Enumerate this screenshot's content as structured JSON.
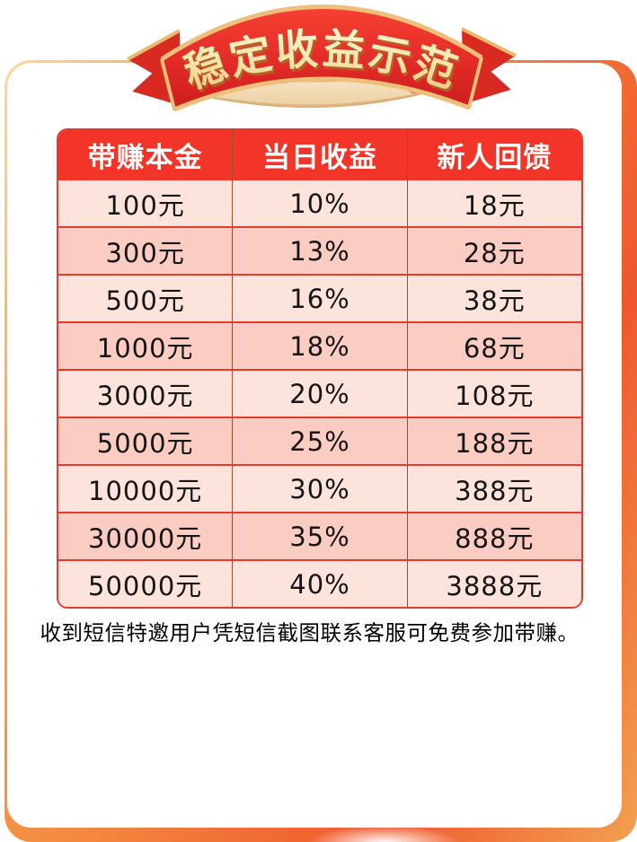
{
  "banner": {
    "title": "稳定收益示范"
  },
  "table": {
    "headers": [
      "带赚本金",
      "当日收益",
      "新人回馈"
    ],
    "rows": [
      [
        "100元",
        "10%",
        "18元"
      ],
      [
        "300元",
        "13%",
        "28元"
      ],
      [
        "500元",
        "16%",
        "38元"
      ],
      [
        "1000元",
        "18%",
        "68元"
      ],
      [
        "3000元",
        "20%",
        "108元"
      ],
      [
        "5000元",
        "25%",
        "188元"
      ],
      [
        "10000元",
        "30%",
        "388元"
      ],
      [
        "30000元",
        "35%",
        "888元"
      ],
      [
        "50000元",
        "40%",
        "3888元"
      ]
    ]
  },
  "note": "收到短信特邀用户凭短信截图联系客服可免费参加带赚。",
  "colors": {
    "header_bg": "#f23429",
    "header_text": "#ffffff",
    "row_odd": "#fce4dd",
    "row_even": "#fbccc2",
    "table_border": "#e9392c",
    "col_divider": "#a04f2c",
    "cell_text": "#151515",
    "ribbon_red": "#e4322b",
    "ribbon_gold": "#edbf7a",
    "parchment": "#f7e6c6",
    "frame_orange": "#f3823d"
  }
}
